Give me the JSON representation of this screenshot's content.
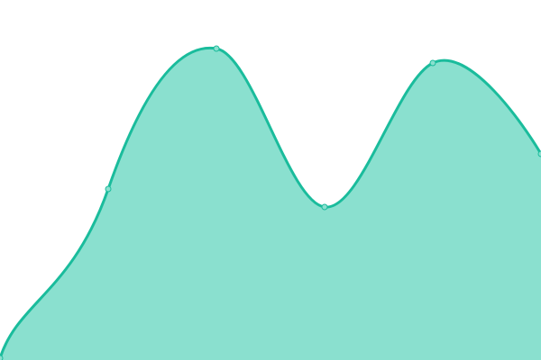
{
  "chart_data": {
    "type": "area",
    "smooth": true,
    "x": [
      0,
      1,
      2,
      3,
      4,
      5
    ],
    "values": [
      2,
      190,
      346,
      170,
      330,
      229
    ],
    "ylim": [
      0,
      400
    ],
    "grid": false,
    "axes_visible": false,
    "colors": {
      "line": "#1abc9c",
      "fill": "#8ae0cf",
      "point_fill": "#8ae0cf",
      "point_stroke": "#1abc9c"
    }
  }
}
